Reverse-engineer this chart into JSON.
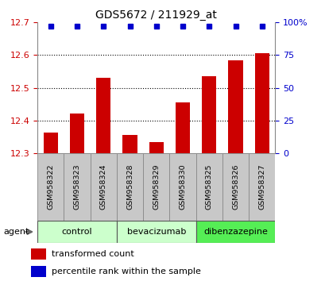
{
  "title": "GDS5672 / 211929_at",
  "samples": [
    "GSM958322",
    "GSM958323",
    "GSM958324",
    "GSM958328",
    "GSM958329",
    "GSM958330",
    "GSM958325",
    "GSM958326",
    "GSM958327"
  ],
  "bar_values": [
    12.362,
    12.422,
    12.53,
    12.356,
    12.334,
    12.455,
    12.535,
    12.585,
    12.605
  ],
  "y_min": 12.3,
  "y_max": 12.7,
  "y_ticks": [
    12.3,
    12.4,
    12.5,
    12.6,
    12.7
  ],
  "y2_ticks": [
    0,
    25,
    50,
    75,
    100
  ],
  "groups": [
    {
      "label": "control",
      "start": 0,
      "end": 3,
      "color": "#ccffcc"
    },
    {
      "label": "bevacizumab",
      "start": 3,
      "end": 6,
      "color": "#ccffcc"
    },
    {
      "label": "dibenzazepine",
      "start": 6,
      "end": 9,
      "color": "#55ee55"
    }
  ],
  "bar_color": "#cc0000",
  "dot_color": "#0000cc",
  "bar_bottom": 12.3,
  "tick_label_color_left": "#cc0000",
  "tick_label_color_right": "#0000cc",
  "title_color": "#000000",
  "legend_bar_label": "transformed count",
  "legend_dot_label": "percentile rank within the sample",
  "agent_label": "agent",
  "sample_box_color": "#c8c8c8",
  "sample_box_edge": "#888888",
  "grid_lines": [
    12.4,
    12.5,
    12.6
  ]
}
